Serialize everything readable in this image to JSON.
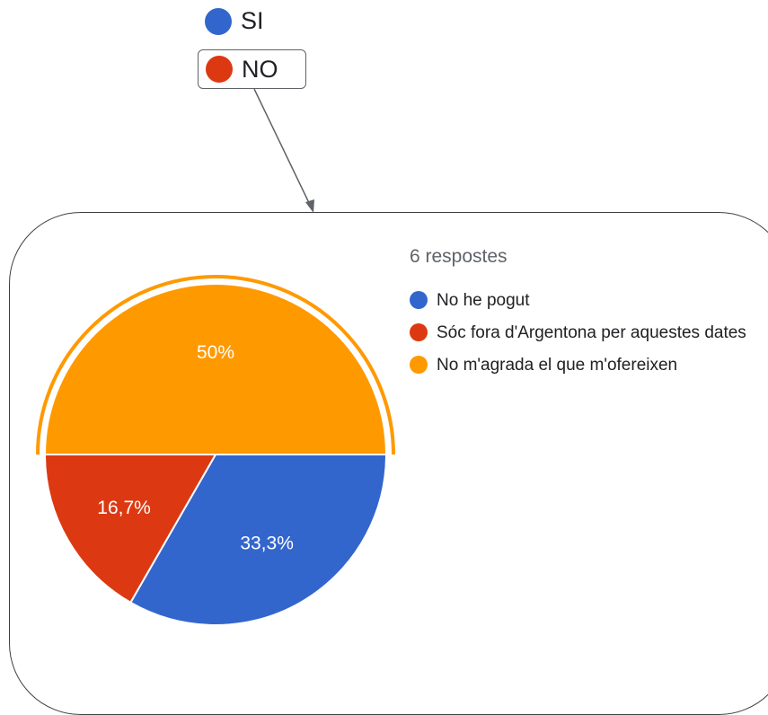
{
  "top_legend": [
    {
      "label": "SI",
      "color": "#3366cc"
    },
    {
      "label": "NO",
      "color": "#dc3912"
    }
  ],
  "response_count": "6 respostes",
  "chart_data": {
    "type": "pie",
    "categories": [
      "No he pogut",
      "Sóc fora d'Argentona per aquestes dates",
      "No m'agrada el que m'ofereixen"
    ],
    "values": [
      33.3,
      16.7,
      50
    ],
    "labels": [
      "33,3%",
      "16,7%",
      "50%"
    ],
    "colors": [
      "#3366cc",
      "#dc3912",
      "#ff9900"
    ],
    "highlighted": "No m'agrada el que m'ofereixen",
    "legend_position": "right"
  }
}
